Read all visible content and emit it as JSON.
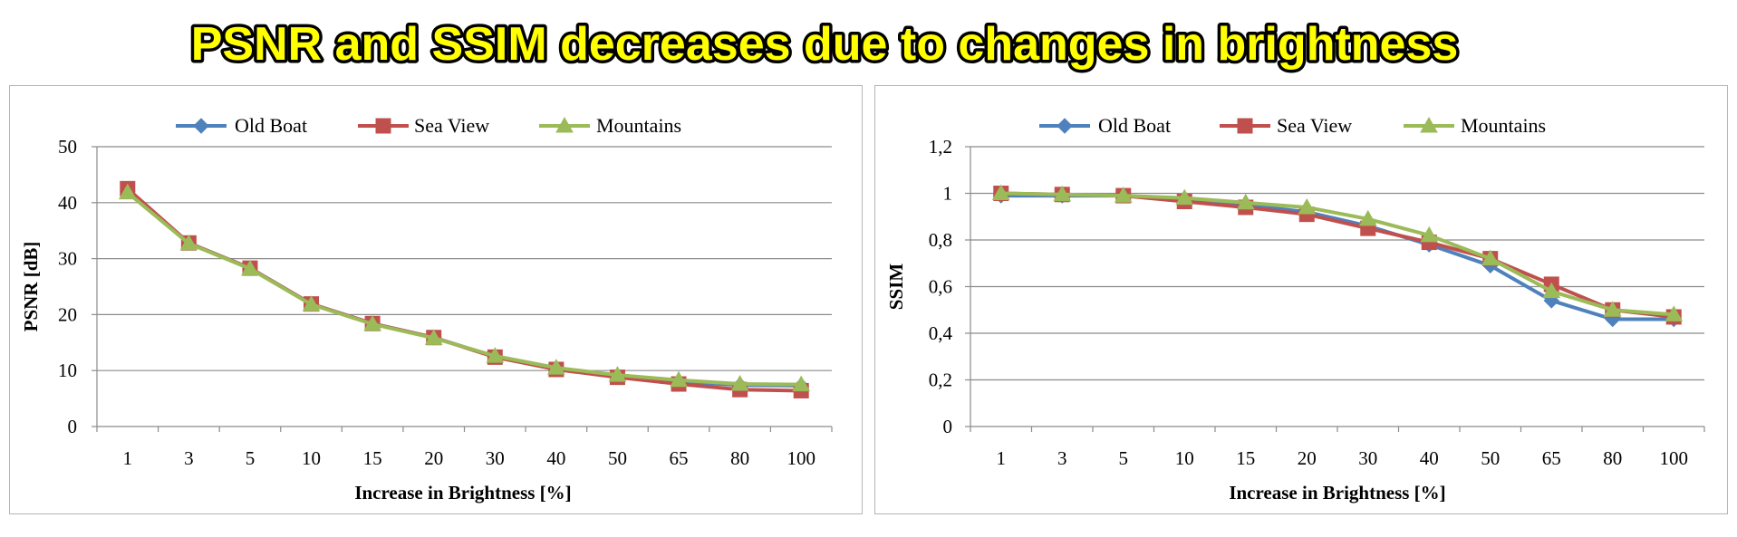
{
  "headline": "PSNR and SSIM decreases due to changes in brightness",
  "colors": {
    "headline_fill": "#ffff00",
    "headline_stroke": "#000000",
    "old_boat": "#4f81bd",
    "sea_view": "#c0504d",
    "mountains": "#9bbb59",
    "gridline": "#8c8c8c"
  },
  "chart_data": [
    {
      "type": "line",
      "title": "",
      "xlabel": "Increase in Brightness [%]",
      "ylabel": "PSNR [dB]",
      "categories": [
        "1",
        "3",
        "5",
        "10",
        "15",
        "20",
        "30",
        "40",
        "50",
        "65",
        "80",
        "100"
      ],
      "yticks": [
        "0",
        "10",
        "20",
        "30",
        "40",
        "50"
      ],
      "ylim": [
        0,
        50
      ],
      "grid": true,
      "legend_position": "top",
      "series": [
        {
          "name": "Old Boat",
          "marker": "diamond",
          "color": "#4f81bd",
          "values": [
            42.0,
            32.8,
            28.3,
            21.9,
            18.4,
            15.9,
            12.5,
            10.3,
            9.0,
            8.0,
            7.4,
            7.3
          ]
        },
        {
          "name": "Sea View",
          "marker": "square",
          "color": "#c0504d",
          "values": [
            42.5,
            32.8,
            28.3,
            21.9,
            18.4,
            15.9,
            12.4,
            10.2,
            8.8,
            7.6,
            6.6,
            6.4
          ]
        },
        {
          "name": "Mountains",
          "marker": "triangle",
          "color": "#9bbb59",
          "values": [
            41.8,
            32.7,
            28.2,
            21.8,
            18.3,
            15.8,
            12.6,
            10.5,
            9.2,
            8.3,
            7.6,
            7.5
          ]
        }
      ]
    },
    {
      "type": "line",
      "title": "",
      "xlabel": "Increase in Brightness [%]",
      "ylabel": "SSIM",
      "categories": [
        "1",
        "3",
        "5",
        "10",
        "15",
        "20",
        "30",
        "40",
        "50",
        "65",
        "80",
        "100"
      ],
      "yticks": [
        "0",
        "0,2",
        "0,4",
        "0,6",
        "0,8",
        "1",
        "1,2"
      ],
      "ylim": [
        0,
        1.2
      ],
      "grid": true,
      "legend_position": "top",
      "series": [
        {
          "name": "Old Boat",
          "marker": "diamond",
          "color": "#4f81bd",
          "values": [
            0.99,
            0.99,
            0.99,
            0.97,
            0.95,
            0.92,
            0.86,
            0.78,
            0.69,
            0.54,
            0.46,
            0.46
          ]
        },
        {
          "name": "Sea View",
          "marker": "square",
          "color": "#c0504d",
          "values": [
            1.0,
            0.995,
            0.99,
            0.965,
            0.94,
            0.91,
            0.85,
            0.79,
            0.72,
            0.61,
            0.5,
            0.47
          ]
        },
        {
          "name": "Mountains",
          "marker": "triangle",
          "color": "#9bbb59",
          "values": [
            1.0,
            0.995,
            0.99,
            0.98,
            0.96,
            0.94,
            0.89,
            0.82,
            0.72,
            0.58,
            0.5,
            0.48
          ]
        }
      ]
    }
  ]
}
